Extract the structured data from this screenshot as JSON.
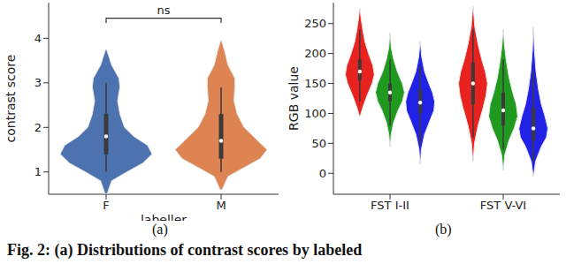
{
  "caption": "Fig. 2: (a) Distributions of contrast scores by labeled",
  "chart_data": [
    {
      "type": "violin",
      "title": "(a)",
      "categories": [
        "F",
        "M"
      ],
      "x_label": "labeller",
      "y_label": "contrast score",
      "ylim": [
        0.5,
        4.8
      ],
      "yticks": [
        1,
        2,
        3,
        4
      ],
      "violins": [
        {
          "category": "F",
          "color": "#4c72b0",
          "y": [
            0.5,
            0.8,
            1.0,
            1.2,
            1.4,
            1.6,
            1.8,
            2.0,
            2.3,
            2.6,
            2.9,
            3.1,
            3.4,
            3.75
          ],
          "density": [
            0.02,
            0.12,
            0.45,
            0.8,
            1.0,
            0.9,
            0.6,
            0.4,
            0.3,
            0.25,
            0.3,
            0.28,
            0.12,
            0.01
          ],
          "box": {
            "whisker_low": 1.0,
            "q1": 1.4,
            "median": 1.8,
            "q3": 2.3,
            "whisker_high": 3.0
          }
        },
        {
          "category": "M",
          "color": "#dd8452",
          "y": [
            0.6,
            0.9,
            1.1,
            1.3,
            1.5,
            1.7,
            2.0,
            2.3,
            2.6,
            2.9,
            3.1,
            3.4,
            3.7,
            3.95
          ],
          "density": [
            0.02,
            0.15,
            0.5,
            0.85,
            1.0,
            0.8,
            0.5,
            0.35,
            0.28,
            0.3,
            0.3,
            0.15,
            0.08,
            0.01
          ],
          "box": {
            "whisker_low": 1.0,
            "q1": 1.3,
            "median": 1.7,
            "q3": 2.3,
            "whisker_high": 2.9
          }
        }
      ],
      "annotations": [
        {
          "text": "ns",
          "between": [
            "F",
            "M"
          ],
          "y": 4.45
        }
      ]
    },
    {
      "type": "violin",
      "title": "(b)",
      "categories": [
        "FST I-II",
        "FST V-VI"
      ],
      "y_label": "RGB value",
      "ylim": [
        -35,
        285
      ],
      "yticks": [
        0,
        50,
        100,
        150,
        200,
        250
      ],
      "series": [
        {
          "color": "#e8221f",
          "violins": [
            {
              "category": "FST I-II",
              "y": [
                95,
                110,
                130,
                150,
                165,
                180,
                200,
                220,
                240,
                260,
                275
              ],
              "density": [
                0.02,
                0.2,
                0.5,
                0.85,
                1.0,
                0.9,
                0.6,
                0.35,
                0.2,
                0.08,
                0.01
              ],
              "box": {
                "whisker_low": 120,
                "q1": 155,
                "median": 170,
                "q3": 190,
                "whisker_high": 240
              }
            },
            {
              "category": "FST V-VI",
              "y": [
                20,
                50,
                80,
                110,
                130,
                150,
                170,
                190,
                215,
                245,
                280
              ],
              "density": [
                0.01,
                0.1,
                0.35,
                0.7,
                0.9,
                1.0,
                0.85,
                0.6,
                0.35,
                0.12,
                0.01
              ],
              "box": {
                "whisker_low": 60,
                "q1": 115,
                "median": 150,
                "q3": 185,
                "whisker_high": 240
              }
            }
          ]
        },
        {
          "color": "#1f9a1f",
          "violins": [
            {
              "category": "FST I-II",
              "y": [
                45,
                65,
                85,
                105,
                120,
                135,
                150,
                170,
                190,
                210,
                235
              ],
              "density": [
                0.01,
                0.08,
                0.25,
                0.55,
                0.85,
                1.0,
                0.85,
                0.5,
                0.25,
                0.08,
                0.01
              ],
              "box": {
                "whisker_low": 80,
                "q1": 120,
                "median": 135,
                "q3": 150,
                "whisker_high": 190
              }
            },
            {
              "category": "FST V-VI",
              "y": [
                5,
                30,
                55,
                75,
                95,
                115,
                135,
                160,
                190,
                215,
                240
              ],
              "density": [
                0.01,
                0.1,
                0.4,
                0.75,
                1.0,
                0.9,
                0.65,
                0.4,
                0.2,
                0.08,
                0.01
              ],
              "box": {
                "whisker_low": 40,
                "q1": 80,
                "median": 105,
                "q3": 135,
                "whisker_high": 190
              }
            }
          ]
        },
        {
          "color": "#2222e6",
          "violins": [
            {
              "category": "FST I-II",
              "y": [
                15,
                40,
                65,
                90,
                105,
                120,
                135,
                150,
                170,
                195,
                220
              ],
              "density": [
                0.01,
                0.08,
                0.3,
                0.7,
                0.95,
                1.0,
                0.85,
                0.6,
                0.3,
                0.1,
                0.01
              ],
              "box": {
                "whisker_low": 50,
                "q1": 100,
                "median": 118,
                "q3": 140,
                "whisker_high": 180
              }
            },
            {
              "category": "FST V-VI",
              "y": [
                -5,
                20,
                45,
                60,
                75,
                95,
                115,
                140,
                170,
                205,
                245
              ],
              "density": [
                0.01,
                0.15,
                0.55,
                0.9,
                1.0,
                0.8,
                0.55,
                0.35,
                0.18,
                0.07,
                0.01
              ],
              "box": {
                "whisker_low": 20,
                "q1": 55,
                "median": 75,
                "q3": 110,
                "whisker_high": 170
              }
            }
          ]
        }
      ]
    }
  ]
}
